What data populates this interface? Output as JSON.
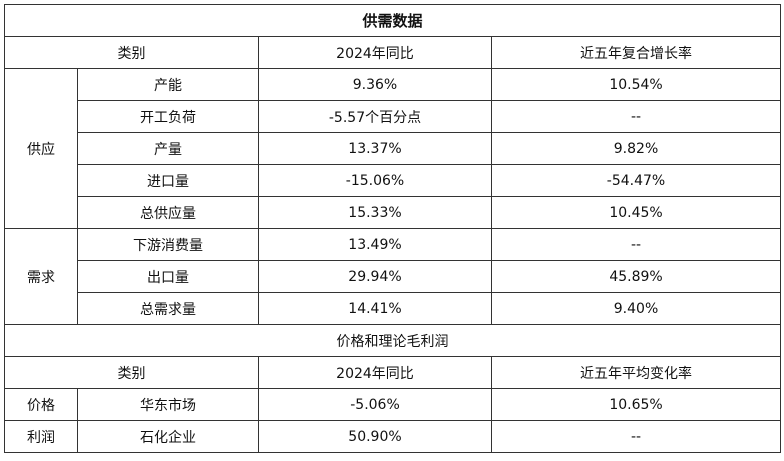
{
  "chart_data": {
    "type": "table",
    "title": "供需数据",
    "header": {
      "category": "类别",
      "col1": "2024年同比",
      "col2": "近五年复合增长率"
    },
    "supply": {
      "group": "供应",
      "rows": [
        {
          "item": "产能",
          "v1": "9.36%",
          "v2": "10.54%"
        },
        {
          "item": "开工负荷",
          "v1": "-5.57个百分点",
          "v2": "--"
        },
        {
          "item": "产量",
          "v1": "13.37%",
          "v2": "9.82%"
        },
        {
          "item": "进口量",
          "v1": "-15.06%",
          "v2": "-54.47%"
        },
        {
          "item": "总供应量",
          "v1": "15.33%",
          "v2": "10.45%"
        }
      ]
    },
    "demand": {
      "group": "需求",
      "rows": [
        {
          "item": "下游消费量",
          "v1": "13.49%",
          "v2": "--"
        },
        {
          "item": "出口量",
          "v1": "29.94%",
          "v2": "45.89%"
        },
        {
          "item": "总需求量",
          "v1": "14.41%",
          "v2": "9.40%"
        }
      ]
    },
    "section2": {
      "title": "价格和理论毛利润",
      "header": {
        "category": "类别",
        "col1": "2024年同比",
        "col2": "近五年平均变化率"
      },
      "rows": [
        {
          "group": "价格",
          "item": "华东市场",
          "v1": "-5.06%",
          "v2": "10.65%"
        },
        {
          "group": "利润",
          "item": "石化企业",
          "v1": "50.90%",
          "v2": "--"
        }
      ]
    }
  }
}
